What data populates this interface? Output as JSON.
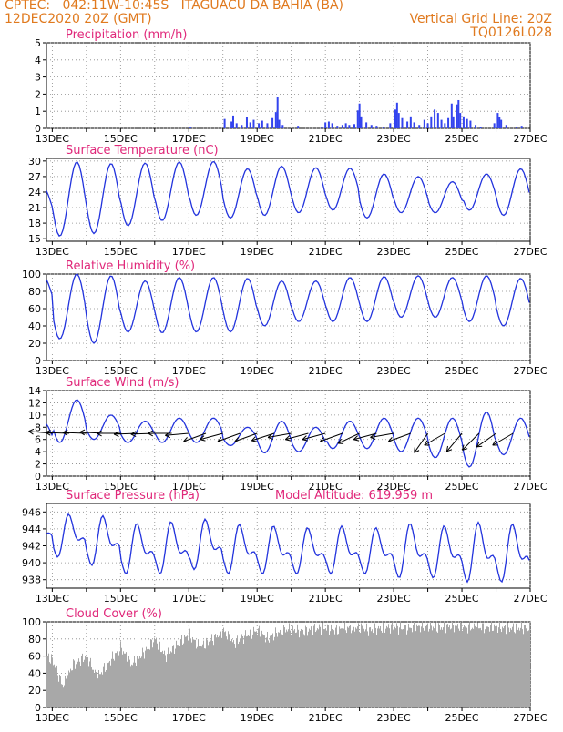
{
  "header": {
    "line1_left": "CPTEC:   042:11W-10:45S   ITAGUACU DA BAHIA (BA)",
    "line2_left": "12DEC2020 20Z (GMT)",
    "line2_right": "Vertical Grid Line: 20Z",
    "line3_right": "TQ0126L028",
    "model_altitude": "Model Altitude: 619.959 m"
  },
  "x_tick_labels": [
    "13DEC",
    "15DEC",
    "17DEC",
    "19DEC",
    "21DEC",
    "23DEC",
    "25DEC",
    "27DEC"
  ],
  "chart_data": [
    {
      "type": "bar",
      "title": "Precipitation (mm/h)",
      "ylim": [
        0,
        5
      ],
      "yticks": [
        0,
        1,
        2,
        3,
        4,
        5
      ],
      "x_unit": "day",
      "x_range": [
        12.83,
        27.0
      ],
      "series": [
        {
          "color": "#3344ee",
          "points": [
            [
              17.05,
              0.05
            ],
            [
              18.05,
              0.55
            ],
            [
              18.25,
              0.4
            ],
            [
              18.3,
              0.75
            ],
            [
              18.4,
              0.3
            ],
            [
              18.55,
              0.2
            ],
            [
              18.7,
              0.65
            ],
            [
              18.8,
              0.35
            ],
            [
              18.9,
              0.5
            ],
            [
              19.05,
              0.3
            ],
            [
              19.15,
              0.45
            ],
            [
              19.3,
              0.3
            ],
            [
              19.45,
              0.6
            ],
            [
              19.55,
              0.95
            ],
            [
              19.6,
              1.85
            ],
            [
              19.65,
              0.5
            ],
            [
              19.75,
              0.2
            ],
            [
              20.2,
              0.15
            ],
            [
              20.9,
              0.1
            ],
            [
              21.0,
              0.35
            ],
            [
              21.1,
              0.4
            ],
            [
              21.2,
              0.3
            ],
            [
              21.35,
              0.15
            ],
            [
              21.5,
              0.2
            ],
            [
              21.6,
              0.3
            ],
            [
              21.7,
              0.2
            ],
            [
              21.85,
              0.25
            ],
            [
              21.95,
              1.05
            ],
            [
              22.0,
              1.45
            ],
            [
              22.05,
              0.7
            ],
            [
              22.2,
              0.35
            ],
            [
              22.35,
              0.2
            ],
            [
              22.5,
              0.15
            ],
            [
              22.7,
              0.1
            ],
            [
              22.9,
              0.3
            ],
            [
              23.05,
              1.1
            ],
            [
              23.1,
              1.5
            ],
            [
              23.15,
              0.9
            ],
            [
              23.25,
              0.6
            ],
            [
              23.4,
              0.4
            ],
            [
              23.5,
              0.7
            ],
            [
              23.6,
              0.35
            ],
            [
              23.75,
              0.2
            ],
            [
              23.9,
              0.5
            ],
            [
              24.0,
              0.3
            ],
            [
              24.1,
              0.7
            ],
            [
              24.2,
              1.1
            ],
            [
              24.3,
              0.9
            ],
            [
              24.4,
              0.5
            ],
            [
              24.5,
              0.3
            ],
            [
              24.6,
              0.6
            ],
            [
              24.7,
              1.45
            ],
            [
              24.75,
              0.7
            ],
            [
              24.85,
              1.4
            ],
            [
              24.9,
              1.65
            ],
            [
              24.95,
              0.9
            ],
            [
              25.05,
              0.7
            ],
            [
              25.15,
              0.55
            ],
            [
              25.25,
              0.45
            ],
            [
              25.4,
              0.2
            ],
            [
              25.55,
              0.1
            ],
            [
              25.95,
              0.3
            ],
            [
              26.05,
              0.9
            ],
            [
              26.1,
              0.65
            ],
            [
              26.15,
              0.5
            ],
            [
              26.3,
              0.2
            ],
            [
              26.6,
              0.1
            ],
            [
              26.75,
              0.15
            ]
          ]
        }
      ]
    },
    {
      "type": "line",
      "title": "Surface Temperature (nC)",
      "ylim": [
        14.5,
        30.5
      ],
      "yticks": [
        15,
        18,
        21,
        24,
        27,
        30
      ],
      "x_unit": "day",
      "x_range": [
        12.83,
        27.0
      ],
      "series": [
        {
          "color": "#2233dd",
          "diurnal": true,
          "days": [
            12,
            13,
            14,
            15,
            16,
            17,
            18,
            19,
            20,
            21,
            22,
            23,
            24,
            25,
            26,
            27
          ],
          "mins": [
            18.5,
            15.5,
            16.0,
            17.5,
            18.5,
            19.5,
            19.0,
            19.5,
            20.0,
            20.5,
            19.0,
            20.0,
            20.0,
            20.5,
            19.5,
            20.5
          ],
          "maxs": [
            25.0,
            29.8,
            29.5,
            29.6,
            29.8,
            29.9,
            28.5,
            29.0,
            28.7,
            28.6,
            27.5,
            27.0,
            26.0,
            27.5,
            28.5,
            28.5
          ]
        }
      ]
    },
    {
      "type": "line",
      "title": "Relative Humidity (%)",
      "ylim": [
        0,
        100
      ],
      "yticks": [
        0,
        20,
        40,
        60,
        80,
        100
      ],
      "x_unit": "day",
      "x_range": [
        12.83,
        27.0
      ],
      "series": [
        {
          "color": "#2233dd",
          "diurnal": true,
          "days": [
            12,
            13,
            14,
            15,
            16,
            17,
            18,
            19,
            20,
            21,
            22,
            23,
            24,
            25,
            26,
            27
          ],
          "mins": [
            60,
            25,
            20,
            33,
            32,
            33,
            33,
            40,
            45,
            45,
            45,
            50,
            50,
            45,
            40,
            50
          ],
          "maxs": [
            98,
            100,
            98,
            92,
            96,
            96,
            95,
            92,
            92,
            96,
            97,
            98,
            96,
            98,
            95,
            95
          ]
        }
      ]
    },
    {
      "type": "line",
      "title": "Surface Wind (m/s)",
      "ylim": [
        0,
        14
      ],
      "yticks": [
        0,
        2,
        4,
        6,
        8,
        10,
        12,
        14
      ],
      "x_unit": "day",
      "x_range": [
        12.83,
        27.0
      ],
      "series": [
        {
          "color": "#2233dd",
          "diurnal": true,
          "days": [
            12,
            13,
            14,
            15,
            16,
            17,
            18,
            19,
            20,
            21,
            22,
            23,
            24,
            25,
            26,
            27
          ],
          "mins": [
            5.0,
            5.5,
            6.0,
            5.5,
            5.5,
            5.5,
            5.0,
            3.8,
            4.0,
            4.5,
            4.5,
            4.0,
            3.0,
            1.5,
            3.5,
            3.0
          ],
          "maxs": [
            9.0,
            12.5,
            10.0,
            9.0,
            9.5,
            9.5,
            8.0,
            9.0,
            8.0,
            9.0,
            9.5,
            9.5,
            9.5,
            10.5,
            9.5,
            9.0
          ]
        }
      ],
      "wind_vectors_deg_from_east": [
        [
          13.0,
          175
        ],
        [
          13.5,
          178
        ],
        [
          14.0,
          178
        ],
        [
          14.5,
          177
        ],
        [
          15.0,
          180
        ],
        [
          15.5,
          182
        ],
        [
          16.0,
          182
        ],
        [
          16.5,
          180
        ],
        [
          17.0,
          185
        ],
        [
          17.5,
          200
        ],
        [
          18.0,
          195
        ],
        [
          18.5,
          200
        ],
        [
          19.0,
          200
        ],
        [
          19.5,
          198
        ],
        [
          20.0,
          190
        ],
        [
          20.5,
          195
        ],
        [
          21.0,
          195
        ],
        [
          21.5,
          200
        ],
        [
          22.0,
          205
        ],
        [
          22.5,
          195
        ],
        [
          23.0,
          190
        ],
        [
          23.5,
          200
        ],
        [
          24.0,
          235
        ],
        [
          24.5,
          210
        ],
        [
          25.0,
          230
        ],
        [
          25.5,
          225
        ],
        [
          26.0,
          215
        ],
        [
          26.5,
          210
        ]
      ]
    },
    {
      "type": "line",
      "title": "Surface Pressure (hPa)",
      "ylim": [
        937,
        947
      ],
      "yticks": [
        938,
        940,
        942,
        944,
        946
      ],
      "x_unit": "day",
      "x_range": [
        12.83,
        27.0
      ],
      "series": [
        {
          "color": "#2233dd",
          "semidiurnal": true,
          "days": [
            12,
            13,
            14,
            15,
            16,
            17,
            18,
            19,
            20,
            21,
            22,
            23,
            24,
            25,
            26,
            27
          ],
          "mins": [
            942.0,
            940.5,
            939.5,
            938.5,
            938.5,
            939.0,
            938.5,
            938.5,
            938.5,
            938.5,
            938.5,
            938.0,
            938.0,
            937.5,
            937.5,
            938.0
          ],
          "maxs": [
            945.2,
            945.6,
            945.4,
            944.5,
            944.7,
            945.0,
            944.4,
            944.2,
            944.0,
            944.2,
            944.0,
            944.5,
            944.2,
            944.6,
            944.4,
            944.5
          ]
        }
      ]
    },
    {
      "type": "bar",
      "title": "Cloud Cover (%)",
      "ylim": [
        0,
        100
      ],
      "yticks": [
        0,
        20,
        40,
        60,
        80,
        100
      ],
      "x_unit": "day",
      "x_range": [
        12.83,
        27.0
      ],
      "series": [
        {
          "color": "#a8a8a8",
          "levels_per_day": [
            [
              12.83,
              60
            ],
            [
              13.0,
              55
            ],
            [
              13.3,
              25
            ],
            [
              13.6,
              50
            ],
            [
              14.0,
              60
            ],
            [
              14.3,
              35
            ],
            [
              14.7,
              55
            ],
            [
              15.0,
              70
            ],
            [
              15.3,
              50
            ],
            [
              15.7,
              65
            ],
            [
              16.0,
              80
            ],
            [
              16.3,
              60
            ],
            [
              16.7,
              75
            ],
            [
              17.0,
              85
            ],
            [
              17.3,
              70
            ],
            [
              17.7,
              80
            ],
            [
              18.0,
              90
            ],
            [
              18.3,
              75
            ],
            [
              18.7,
              85
            ],
            [
              19.0,
              90
            ],
            [
              19.3,
              80
            ],
            [
              19.7,
              90
            ],
            [
              20.0,
              92
            ],
            [
              20.3,
              88
            ],
            [
              20.7,
              92
            ],
            [
              21.0,
              93
            ],
            [
              21.3,
              90
            ],
            [
              21.7,
              93
            ],
            [
              22.0,
              93
            ],
            [
              22.3,
              90
            ],
            [
              22.7,
              93
            ],
            [
              23.0,
              94
            ],
            [
              23.3,
              92
            ],
            [
              23.7,
              94
            ],
            [
              24.0,
              95
            ],
            [
              24.3,
              93
            ],
            [
              24.7,
              95
            ],
            [
              25.0,
              95
            ],
            [
              25.3,
              93
            ],
            [
              25.7,
              94
            ],
            [
              26.0,
              94
            ],
            [
              26.3,
              92
            ],
            [
              26.7,
              93
            ],
            [
              27.0,
              93
            ]
          ]
        }
      ]
    }
  ]
}
